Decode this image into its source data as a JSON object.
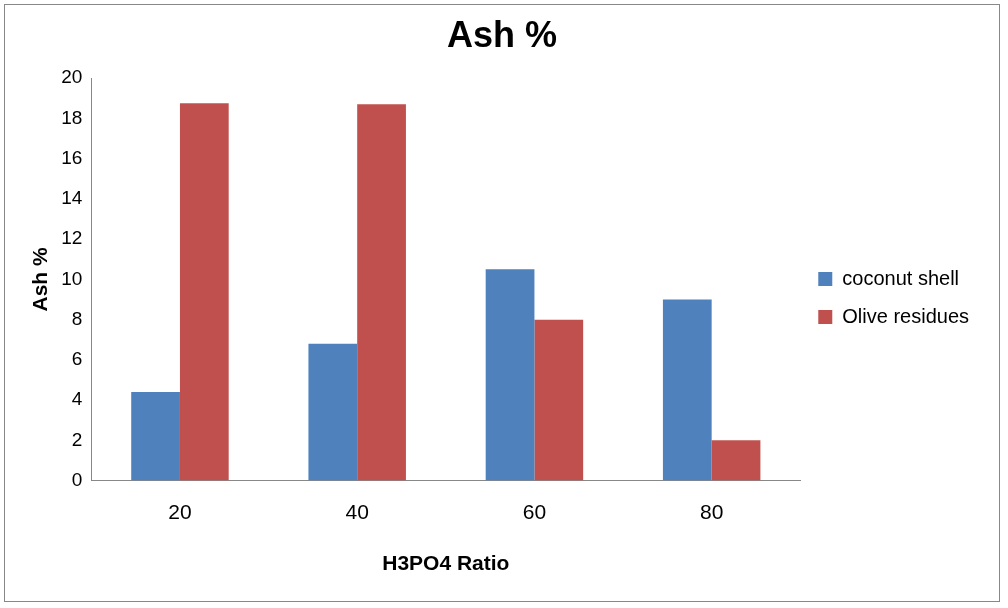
{
  "chart_data": {
    "type": "bar",
    "title": "Ash %",
    "xlabel": "H3PO4 Ratio",
    "ylabel": "Ash %",
    "categories": [
      "20",
      "40",
      "60",
      "80"
    ],
    "series": [
      {
        "name": "coconut shell",
        "color": "#4f81bd",
        "values": [
          4.4,
          6.8,
          10.5,
          9.0
        ]
      },
      {
        "name": "Olive residues",
        "color": "#c0504d",
        "values": [
          18.75,
          18.7,
          8.0,
          2.0
        ]
      }
    ],
    "ylim": [
      0,
      20
    ],
    "yticks": [
      0,
      2,
      4,
      6,
      8,
      10,
      12,
      14,
      16,
      18,
      20
    ],
    "grid": false,
    "legend": "right"
  }
}
